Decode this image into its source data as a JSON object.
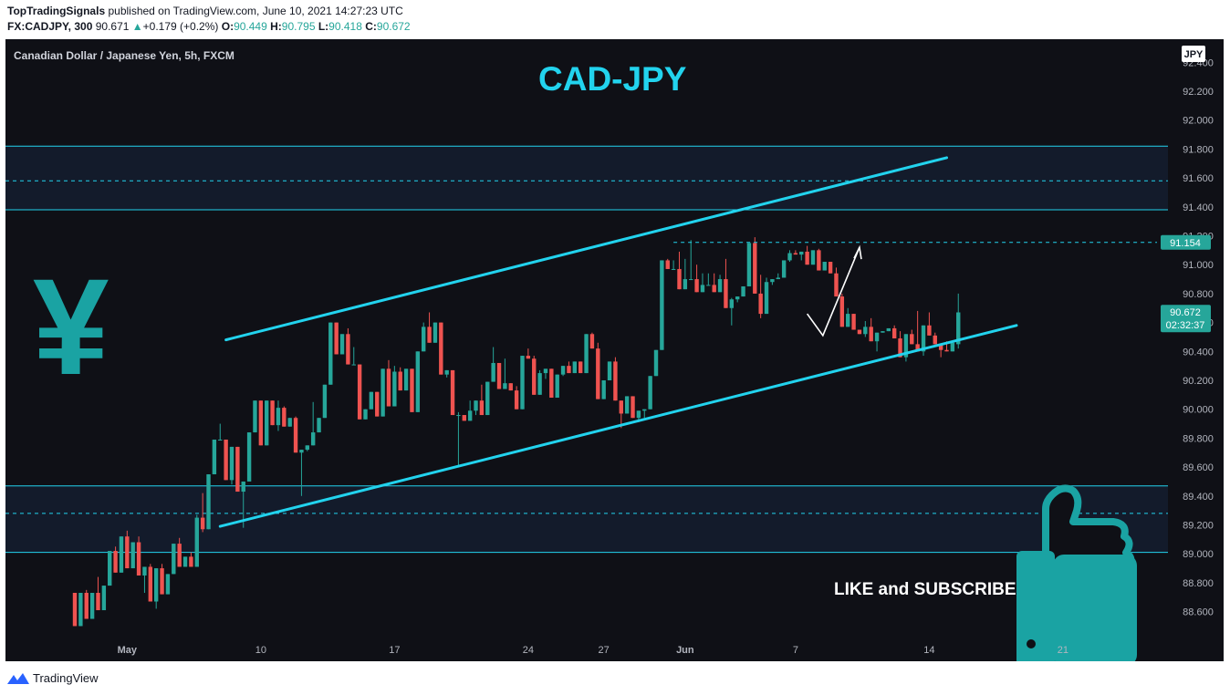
{
  "header": {
    "publisher": "TopTradingSignals",
    "published_text": "published on TradingView.com, June 10, 2021 14:27:23 UTC",
    "symbol_interval": "FX:CADJPY, 300",
    "last": "90.671",
    "change_arrow": "▲",
    "change": "+0.179 (+0.2%)",
    "o_label": "O:",
    "o": "90.449",
    "h_label": "H:",
    "h": "90.795",
    "l_label": "L:",
    "l": "90.418",
    "c_label": "C:",
    "c": "90.672"
  },
  "chart_title": "Canadian Dollar / Japanese Yen, 5h, FXCM",
  "currency_badge": "JPY",
  "annotation_title": "CAD-JPY",
  "currency_symbol": "¥",
  "cta_text": "LIKE and SUBSCRIBE",
  "footer": {
    "brand": "TradingView"
  },
  "colors": {
    "background": "#0f1016",
    "up_candle": "#26a69a",
    "down_candle": "#ef5350",
    "channel": "#22d3ee",
    "zone_fill": "#131b2b",
    "price_tag": "#26a69a",
    "label_text": "#b2b5be"
  },
  "chart_data": {
    "type": "candlestick",
    "title": "Canadian Dollar / Japanese Yen, 5h, FXCM",
    "ylim": [
      88.45,
      92.55
    ],
    "y_ticks": [
      "92.400",
      "92.200",
      "92.000",
      "91.800",
      "91.600",
      "91.400",
      "91.200",
      "91.000",
      "90.800",
      "90.600",
      "90.400",
      "90.200",
      "90.000",
      "89.800",
      "89.600",
      "89.400",
      "89.200",
      "89.000",
      "88.800",
      "88.600"
    ],
    "x_ticks": [
      {
        "label": "May",
        "t": 9
      },
      {
        "label": "10",
        "t": 32
      },
      {
        "label": "17",
        "t": 55
      },
      {
        "label": "24",
        "t": 78
      },
      {
        "label": "27",
        "t": 91
      },
      {
        "label": "Jun",
        "t": 105
      },
      {
        "label": "7",
        "t": 124
      },
      {
        "label": "14",
        "t": 147
      },
      {
        "label": "21",
        "t": 170
      }
    ],
    "price_tags": [
      {
        "value": 91.154,
        "label": "91.154"
      },
      {
        "value": 90.672,
        "label": "90.672",
        "sub": "02:32:37"
      }
    ],
    "zones": [
      {
        "top": 91.82,
        "bottom": 91.38,
        "mid": 91.58
      },
      {
        "top": 89.47,
        "bottom": 89.01,
        "mid": 89.28
      }
    ],
    "channel_lines": [
      {
        "t0": 26,
        "v0": 90.48,
        "t1": 150,
        "v1": 91.74
      },
      {
        "t0": 25,
        "v0": 89.19,
        "t1": 162,
        "v1": 90.58
      }
    ],
    "resistance_level": 91.154,
    "projection": [
      [
        126,
        90.66
      ],
      [
        128.7,
        90.51
      ],
      [
        135,
        91.12
      ]
    ],
    "candles": [
      [
        88.73,
        88.73,
        88.5,
        88.5
      ],
      [
        88.5,
        88.73,
        88.5,
        88.73
      ],
      [
        88.73,
        88.75,
        88.55,
        88.55
      ],
      [
        88.55,
        88.73,
        88.55,
        88.73
      ],
      [
        88.73,
        88.84,
        88.61,
        88.61
      ],
      [
        88.61,
        88.78,
        88.61,
        88.78
      ],
      [
        88.78,
        89.02,
        88.78,
        89.02
      ],
      [
        89.02,
        89.05,
        88.87,
        88.87
      ],
      [
        88.87,
        89.12,
        88.87,
        89.12
      ],
      [
        89.12,
        89.16,
        88.9,
        88.9
      ],
      [
        88.9,
        89.08,
        88.9,
        89.08
      ],
      [
        89.08,
        89.12,
        88.85,
        88.85
      ],
      [
        88.85,
        88.91,
        88.73,
        88.91
      ],
      [
        88.91,
        88.93,
        88.67,
        88.67
      ],
      [
        88.67,
        88.9,
        88.62,
        88.9
      ],
      [
        88.9,
        88.93,
        88.72,
        88.72
      ],
      [
        88.72,
        88.86,
        88.72,
        88.86
      ],
      [
        88.86,
        89.07,
        88.86,
        89.07
      ],
      [
        89.07,
        89.11,
        88.91,
        88.91
      ],
      [
        88.91,
        88.98,
        88.91,
        88.98
      ],
      [
        88.98,
        89.01,
        88.91,
        88.91
      ],
      [
        88.91,
        89.27,
        88.91,
        89.25
      ],
      [
        89.25,
        89.42,
        89.15,
        89.17
      ],
      [
        89.17,
        89.55,
        89.17,
        89.55
      ],
      [
        89.55,
        89.79,
        89.55,
        89.79
      ],
      [
        89.79,
        89.9,
        89.79,
        89.79
      ],
      [
        89.79,
        89.79,
        89.51,
        89.51
      ],
      [
        89.51,
        89.74,
        89.48,
        89.74
      ],
      [
        89.74,
        89.74,
        89.43,
        89.43
      ],
      [
        89.43,
        89.5,
        89.18,
        89.5
      ],
      [
        89.5,
        89.84,
        89.5,
        89.84
      ],
      [
        89.84,
        90.06,
        89.84,
        90.06
      ],
      [
        90.06,
        90.06,
        89.75,
        89.75
      ],
      [
        89.75,
        90.06,
        89.75,
        90.06
      ],
      [
        90.06,
        90.06,
        89.89,
        89.89
      ],
      [
        89.89,
        90.06,
        89.85,
        90.01
      ],
      [
        90.01,
        90.02,
        89.88,
        89.88
      ],
      [
        89.88,
        89.94,
        89.88,
        89.94
      ],
      [
        89.94,
        89.95,
        89.7,
        89.7
      ],
      [
        89.7,
        89.72,
        89.4,
        89.72
      ],
      [
        89.72,
        89.75,
        89.71,
        89.75
      ],
      [
        89.75,
        90.05,
        89.75,
        89.84
      ],
      [
        89.84,
        89.94,
        89.84,
        89.94
      ],
      [
        89.94,
        90.17,
        89.94,
        90.17
      ],
      [
        90.17,
        90.6,
        90.17,
        90.6
      ],
      [
        90.6,
        90.6,
        90.38,
        90.38
      ],
      [
        90.38,
        90.52,
        90.38,
        90.52
      ],
      [
        90.52,
        90.56,
        90.31,
        90.31
      ],
      [
        90.31,
        90.43,
        90.31,
        90.31
      ],
      [
        90.31,
        90.31,
        89.93,
        89.93
      ],
      [
        89.93,
        90.0,
        89.93,
        90.0
      ],
      [
        90.0,
        90.12,
        90.0,
        90.12
      ],
      [
        90.12,
        90.12,
        89.95,
        89.95
      ],
      [
        89.95,
        90.28,
        89.95,
        90.28
      ],
      [
        90.28,
        90.34,
        90.02,
        90.02
      ],
      [
        90.02,
        90.3,
        90.02,
        90.26
      ],
      [
        90.26,
        90.29,
        90.13,
        90.13
      ],
      [
        90.13,
        90.28,
        90.13,
        90.28
      ],
      [
        90.28,
        90.28,
        89.98,
        89.98
      ],
      [
        89.98,
        90.4,
        89.98,
        90.4
      ],
      [
        90.4,
        90.6,
        90.4,
        90.57
      ],
      [
        90.57,
        90.67,
        90.46,
        90.46
      ],
      [
        90.46,
        90.6,
        90.46,
        90.6
      ],
      [
        90.6,
        90.6,
        90.24,
        90.24
      ],
      [
        90.24,
        90.27,
        90.22,
        90.27
      ],
      [
        90.27,
        90.27,
        89.96,
        89.96
      ],
      [
        89.96,
        89.98,
        89.6,
        89.96
      ],
      [
        89.96,
        89.96,
        89.92,
        89.92
      ],
      [
        89.92,
        90.06,
        89.92,
        89.99
      ],
      [
        89.99,
        90.06,
        89.96,
        90.06
      ],
      [
        90.06,
        90.17,
        89.96,
        89.96
      ],
      [
        89.96,
        90.19,
        89.96,
        90.19
      ],
      [
        90.19,
        90.43,
        90.19,
        90.32
      ],
      [
        90.32,
        90.32,
        90.14,
        90.14
      ],
      [
        90.14,
        90.35,
        90.14,
        90.18
      ],
      [
        90.18,
        90.18,
        90.13,
        90.13
      ],
      [
        90.13,
        90.16,
        90.0,
        90.0
      ],
      [
        90.0,
        90.37,
        90.0,
        90.37
      ],
      [
        90.37,
        90.42,
        90.35,
        90.35
      ],
      [
        90.35,
        90.37,
        90.1,
        90.1
      ],
      [
        90.1,
        90.27,
        90.1,
        90.25
      ],
      [
        90.25,
        90.28,
        90.21,
        90.28
      ],
      [
        90.28,
        90.28,
        90.08,
        90.08
      ],
      [
        90.08,
        90.24,
        90.08,
        90.24
      ],
      [
        90.24,
        90.3,
        90.23,
        90.3
      ],
      [
        90.3,
        90.33,
        90.25,
        90.25
      ],
      [
        90.25,
        90.33,
        90.25,
        90.33
      ],
      [
        90.33,
        90.33,
        90.25,
        90.25
      ],
      [
        90.25,
        90.52,
        90.25,
        90.52
      ],
      [
        90.52,
        90.53,
        90.42,
        90.42
      ],
      [
        90.42,
        90.46,
        90.07,
        90.07
      ],
      [
        90.07,
        90.2,
        90.07,
        90.2
      ],
      [
        90.2,
        90.33,
        90.2,
        90.33
      ],
      [
        90.33,
        90.36,
        90.06,
        90.06
      ],
      [
        90.06,
        90.06,
        89.87,
        89.97
      ],
      [
        89.97,
        90.09,
        89.97,
        90.09
      ],
      [
        90.09,
        90.09,
        89.94,
        89.94
      ],
      [
        89.94,
        89.99,
        89.91,
        89.99
      ],
      [
        89.99,
        90.0,
        89.94,
        90.0
      ],
      [
        90.0,
        90.23,
        90.0,
        90.23
      ],
      [
        90.23,
        90.41,
        90.23,
        90.41
      ],
      [
        90.41,
        91.03,
        90.41,
        91.03
      ],
      [
        91.03,
        91.04,
        90.97,
        90.97
      ],
      [
        90.97,
        91.03,
        90.97,
        90.97
      ],
      [
        90.97,
        91.09,
        90.83,
        90.83
      ],
      [
        90.83,
        91.04,
        90.83,
        90.9
      ],
      [
        90.9,
        91.17,
        90.9,
        90.9
      ],
      [
        90.9,
        91.0,
        90.81,
        90.81
      ],
      [
        90.81,
        90.94,
        90.81,
        90.86
      ],
      [
        90.86,
        90.94,
        90.86,
        90.86
      ],
      [
        90.86,
        90.94,
        90.81,
        90.81
      ],
      [
        90.81,
        90.93,
        90.81,
        90.9
      ],
      [
        90.9,
        91.04,
        90.7,
        90.7
      ],
      [
        90.7,
        90.77,
        90.58,
        90.76
      ],
      [
        90.76,
        90.78,
        90.74,
        90.78
      ],
      [
        90.78,
        90.85,
        90.78,
        90.85
      ],
      [
        90.85,
        91.15,
        90.85,
        91.15
      ],
      [
        91.15,
        91.19,
        90.8,
        90.8
      ],
      [
        90.8,
        90.93,
        90.63,
        90.66
      ],
      [
        90.66,
        90.91,
        90.66,
        90.88
      ],
      [
        90.88,
        90.9,
        90.86,
        90.9
      ],
      [
        90.9,
        90.94,
        90.9,
        90.91
      ],
      [
        90.91,
        91.03,
        90.91,
        91.03
      ],
      [
        91.03,
        91.1,
        91.02,
        91.08
      ],
      [
        91.08,
        91.1,
        91.07,
        91.07
      ],
      [
        91.07,
        91.09,
        91.03,
        91.09
      ],
      [
        91.09,
        91.13,
        91.0,
        91.0
      ],
      [
        91.0,
        91.1,
        91.0,
        91.1
      ],
      [
        91.1,
        91.11,
        90.96,
        90.96
      ],
      [
        90.96,
        91.02,
        90.96,
        91.02
      ],
      [
        91.02,
        91.02,
        90.94,
        90.94
      ],
      [
        90.94,
        90.98,
        90.78,
        90.78
      ],
      [
        90.78,
        90.8,
        90.57,
        90.57
      ],
      [
        90.57,
        90.7,
        90.57,
        90.66
      ],
      [
        90.66,
        90.66,
        90.55,
        90.55
      ],
      [
        90.55,
        90.55,
        90.52,
        90.52
      ],
      [
        90.52,
        90.61,
        90.5,
        90.57
      ],
      [
        90.57,
        90.63,
        90.47,
        90.47
      ],
      [
        90.47,
        90.53,
        90.4,
        90.53
      ],
      [
        90.53,
        90.54,
        90.53,
        90.54
      ],
      [
        90.54,
        90.56,
        90.54,
        90.56
      ],
      [
        90.56,
        90.58,
        90.49,
        90.49
      ],
      [
        90.49,
        90.54,
        90.36,
        90.36
      ],
      [
        90.36,
        90.52,
        90.33,
        90.52
      ],
      [
        90.52,
        90.55,
        90.45,
        90.45
      ],
      [
        90.45,
        90.68,
        90.4,
        90.4
      ],
      [
        90.4,
        90.58,
        90.37,
        90.58
      ],
      [
        90.58,
        90.67,
        90.51,
        90.51
      ],
      [
        90.51,
        90.53,
        90.45,
        90.45
      ],
      [
        90.45,
        90.45,
        90.36,
        90.41
      ],
      [
        90.41,
        90.47,
        90.4,
        90.4
      ],
      [
        90.4,
        90.46,
        90.4,
        90.46
      ],
      [
        90.45,
        90.8,
        90.42,
        90.67
      ]
    ]
  }
}
